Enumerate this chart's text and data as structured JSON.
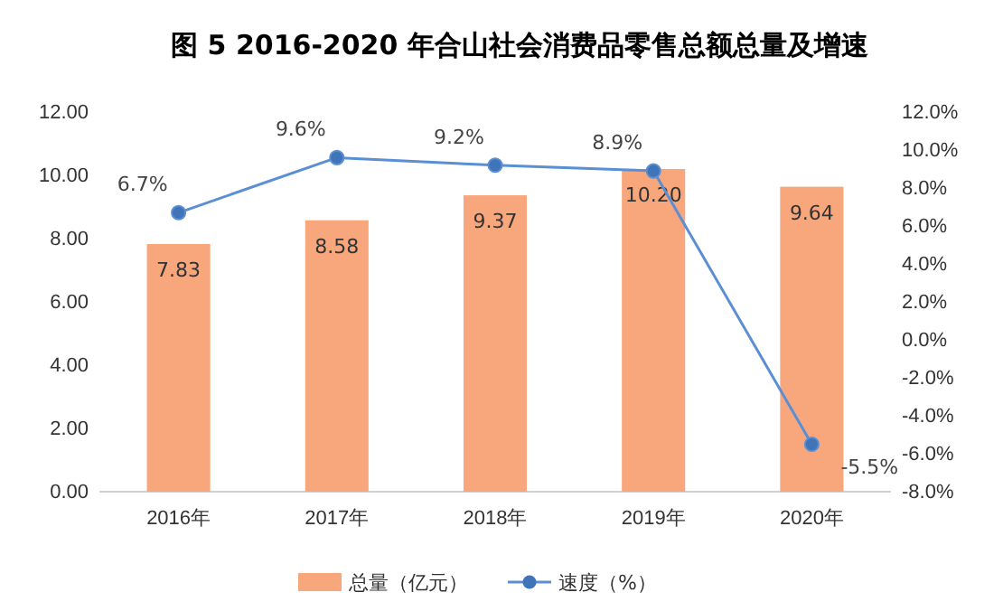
{
  "chart_data": {
    "type": "bar",
    "title": "图 5 2016-2020 年合山社会消费品零售总额总量及增速",
    "categories": [
      "2016年",
      "2017年",
      "2018年",
      "2019年",
      "2020年"
    ],
    "series": [
      {
        "name": "总量（亿元）",
        "color": "#f8a77c",
        "values": [
          7.83,
          8.58,
          9.37,
          10.2,
          9.64
        ],
        "value_labels": [
          "7.83",
          "8.58",
          "9.37",
          "10.20",
          "9.64"
        ]
      },
      {
        "name": "速度（%）",
        "type": "line",
        "axis": "y2",
        "color": "#5b8fd4",
        "values": [
          6.7,
          9.6,
          9.2,
          8.9,
          -5.5
        ],
        "value_labels": [
          "6.7%",
          "9.6%",
          "9.2%",
          "8.9%",
          "-5.5%"
        ]
      }
    ],
    "ylim": [
      0,
      12
    ],
    "yticks": [
      {
        "value": 0,
        "label": "0.00"
      },
      {
        "value": 2,
        "label": "2.00"
      },
      {
        "value": 4,
        "label": "4.00"
      },
      {
        "value": 6,
        "label": "6.00"
      },
      {
        "value": 8,
        "label": "8.00"
      },
      {
        "value": 10,
        "label": "10.00"
      },
      {
        "value": 12,
        "label": "12.00"
      }
    ],
    "y2lim": [
      -8,
      12
    ],
    "y2ticks": [
      {
        "value": -8,
        "label": "-8.0%"
      },
      {
        "value": -6,
        "label": "-6.0%"
      },
      {
        "value": -4,
        "label": "-4.0%"
      },
      {
        "value": -2,
        "label": "-2.0%"
      },
      {
        "value": 0,
        "label": "0.0%"
      },
      {
        "value": 2,
        "label": "2.0%"
      },
      {
        "value": 4,
        "label": "4.0%"
      },
      {
        "value": 6,
        "label": "6.0%"
      },
      {
        "value": 8,
        "label": "8.0%"
      },
      {
        "value": 10,
        "label": "10.0%"
      },
      {
        "value": 12,
        "label": "12.0%"
      }
    ],
    "legend": "bottom",
    "marker": "circle",
    "line_style": "solid"
  }
}
